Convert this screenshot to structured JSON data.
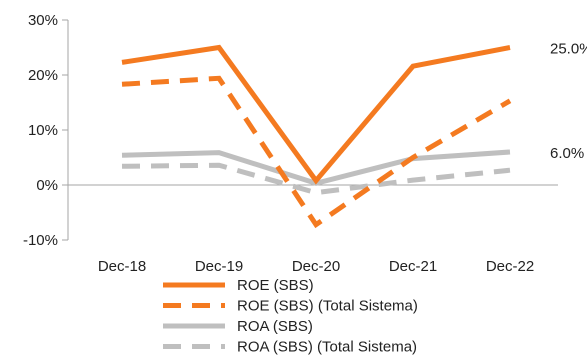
{
  "chart_data": {
    "type": "line",
    "categories": [
      "Dec-18",
      "Dec-19",
      "Dec-20",
      "Dec-21",
      "Dec-22"
    ],
    "ylim": [
      -10,
      30
    ],
    "yticks": [
      -10,
      0,
      10,
      20,
      30
    ],
    "ytick_labels": [
      "-10%",
      "0%",
      "10%",
      "20%",
      "30%"
    ],
    "grid": false,
    "legend_position": "bottom",
    "series": [
      {
        "name": "ROE (SBS)",
        "values": [
          22.3,
          25.0,
          0.8,
          21.6,
          25.0
        ],
        "color": "#f47a20",
        "style": "solid"
      },
      {
        "name": "ROE (SBS) (Total Sistema)",
        "values": [
          18.3,
          19.4,
          -7.2,
          5.0,
          15.3
        ],
        "color": "#f47a20",
        "style": "dashed"
      },
      {
        "name": "ROA (SBS)",
        "values": [
          5.4,
          5.9,
          0.3,
          4.8,
          6.0
        ],
        "color": "#bfbfbf",
        "style": "solid"
      },
      {
        "name": "ROA (SBS) (Total Sistema)",
        "values": [
          3.4,
          3.6,
          -1.4,
          0.9,
          2.7
        ],
        "color": "#bfbfbf",
        "style": "dashed"
      }
    ],
    "annotations": [
      {
        "series_index": 0,
        "point_index": 4,
        "text": "25.0%"
      },
      {
        "series_index": 2,
        "point_index": 4,
        "text": "6.0%"
      }
    ]
  }
}
